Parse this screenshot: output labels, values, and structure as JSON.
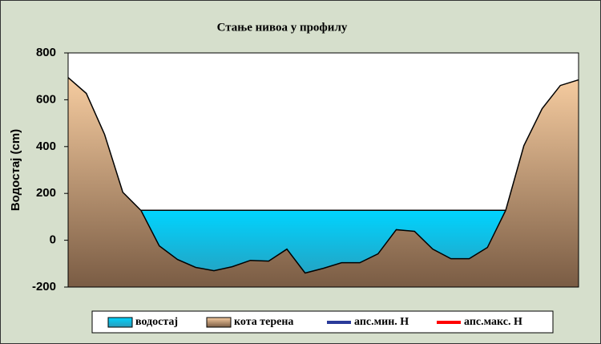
{
  "chart_data": {
    "type": "area",
    "title": "Стање нивоа у профилу",
    "y_label": "Водостај (cm)",
    "categories": [
      null,
      null,
      null,
      null,
      null,
      null,
      null,
      null,
      null,
      null,
      null,
      null,
      null,
      null,
      null,
      null,
      null,
      null,
      null,
      null,
      null,
      null,
      null,
      null,
      null,
      null,
      null,
      null,
      null
    ],
    "ylim": [
      -200,
      800
    ],
    "yticks": [
      -200,
      0,
      200,
      400,
      600,
      800
    ],
    "series": [
      {
        "name": "водостај",
        "color": "#10c8f0",
        "values": [
          128,
          128,
          128,
          128,
          128,
          128,
          128,
          128,
          128,
          128,
          128,
          128,
          128,
          128,
          128,
          128,
          128,
          128,
          128,
          128,
          128,
          128,
          128,
          128,
          128,
          128,
          128,
          128,
          128
        ]
      },
      {
        "name": "кота терена",
        "color": "#d8a878",
        "values": [
          695,
          627,
          452,
          205,
          127,
          -24,
          -82,
          -116,
          -130,
          -113,
          -86,
          -89,
          -38,
          -140,
          -120,
          -96,
          -96,
          -58,
          45,
          38,
          -38,
          -79,
          -79,
          -31,
          127,
          404,
          562,
          661,
          685
        ]
      },
      {
        "name": "апс.мин. Н",
        "color": "#2a3a9a",
        "values": [
          null,
          null,
          null,
          null,
          null,
          null,
          null,
          null,
          null,
          null,
          null,
          null,
          null,
          null,
          null,
          null,
          null,
          null,
          null,
          null,
          null,
          null,
          null,
          null,
          null,
          null,
          null,
          null,
          null
        ]
      },
      {
        "name": "апс.макс. Н",
        "color": "#ff0000",
        "values": [
          null,
          null,
          null,
          null,
          null,
          null,
          null,
          null,
          null,
          null,
          null,
          null,
          null,
          null,
          null,
          null,
          null,
          null,
          null,
          null,
          null,
          null,
          null,
          null,
          null,
          null,
          null,
          null,
          null
        ]
      }
    ]
  }
}
